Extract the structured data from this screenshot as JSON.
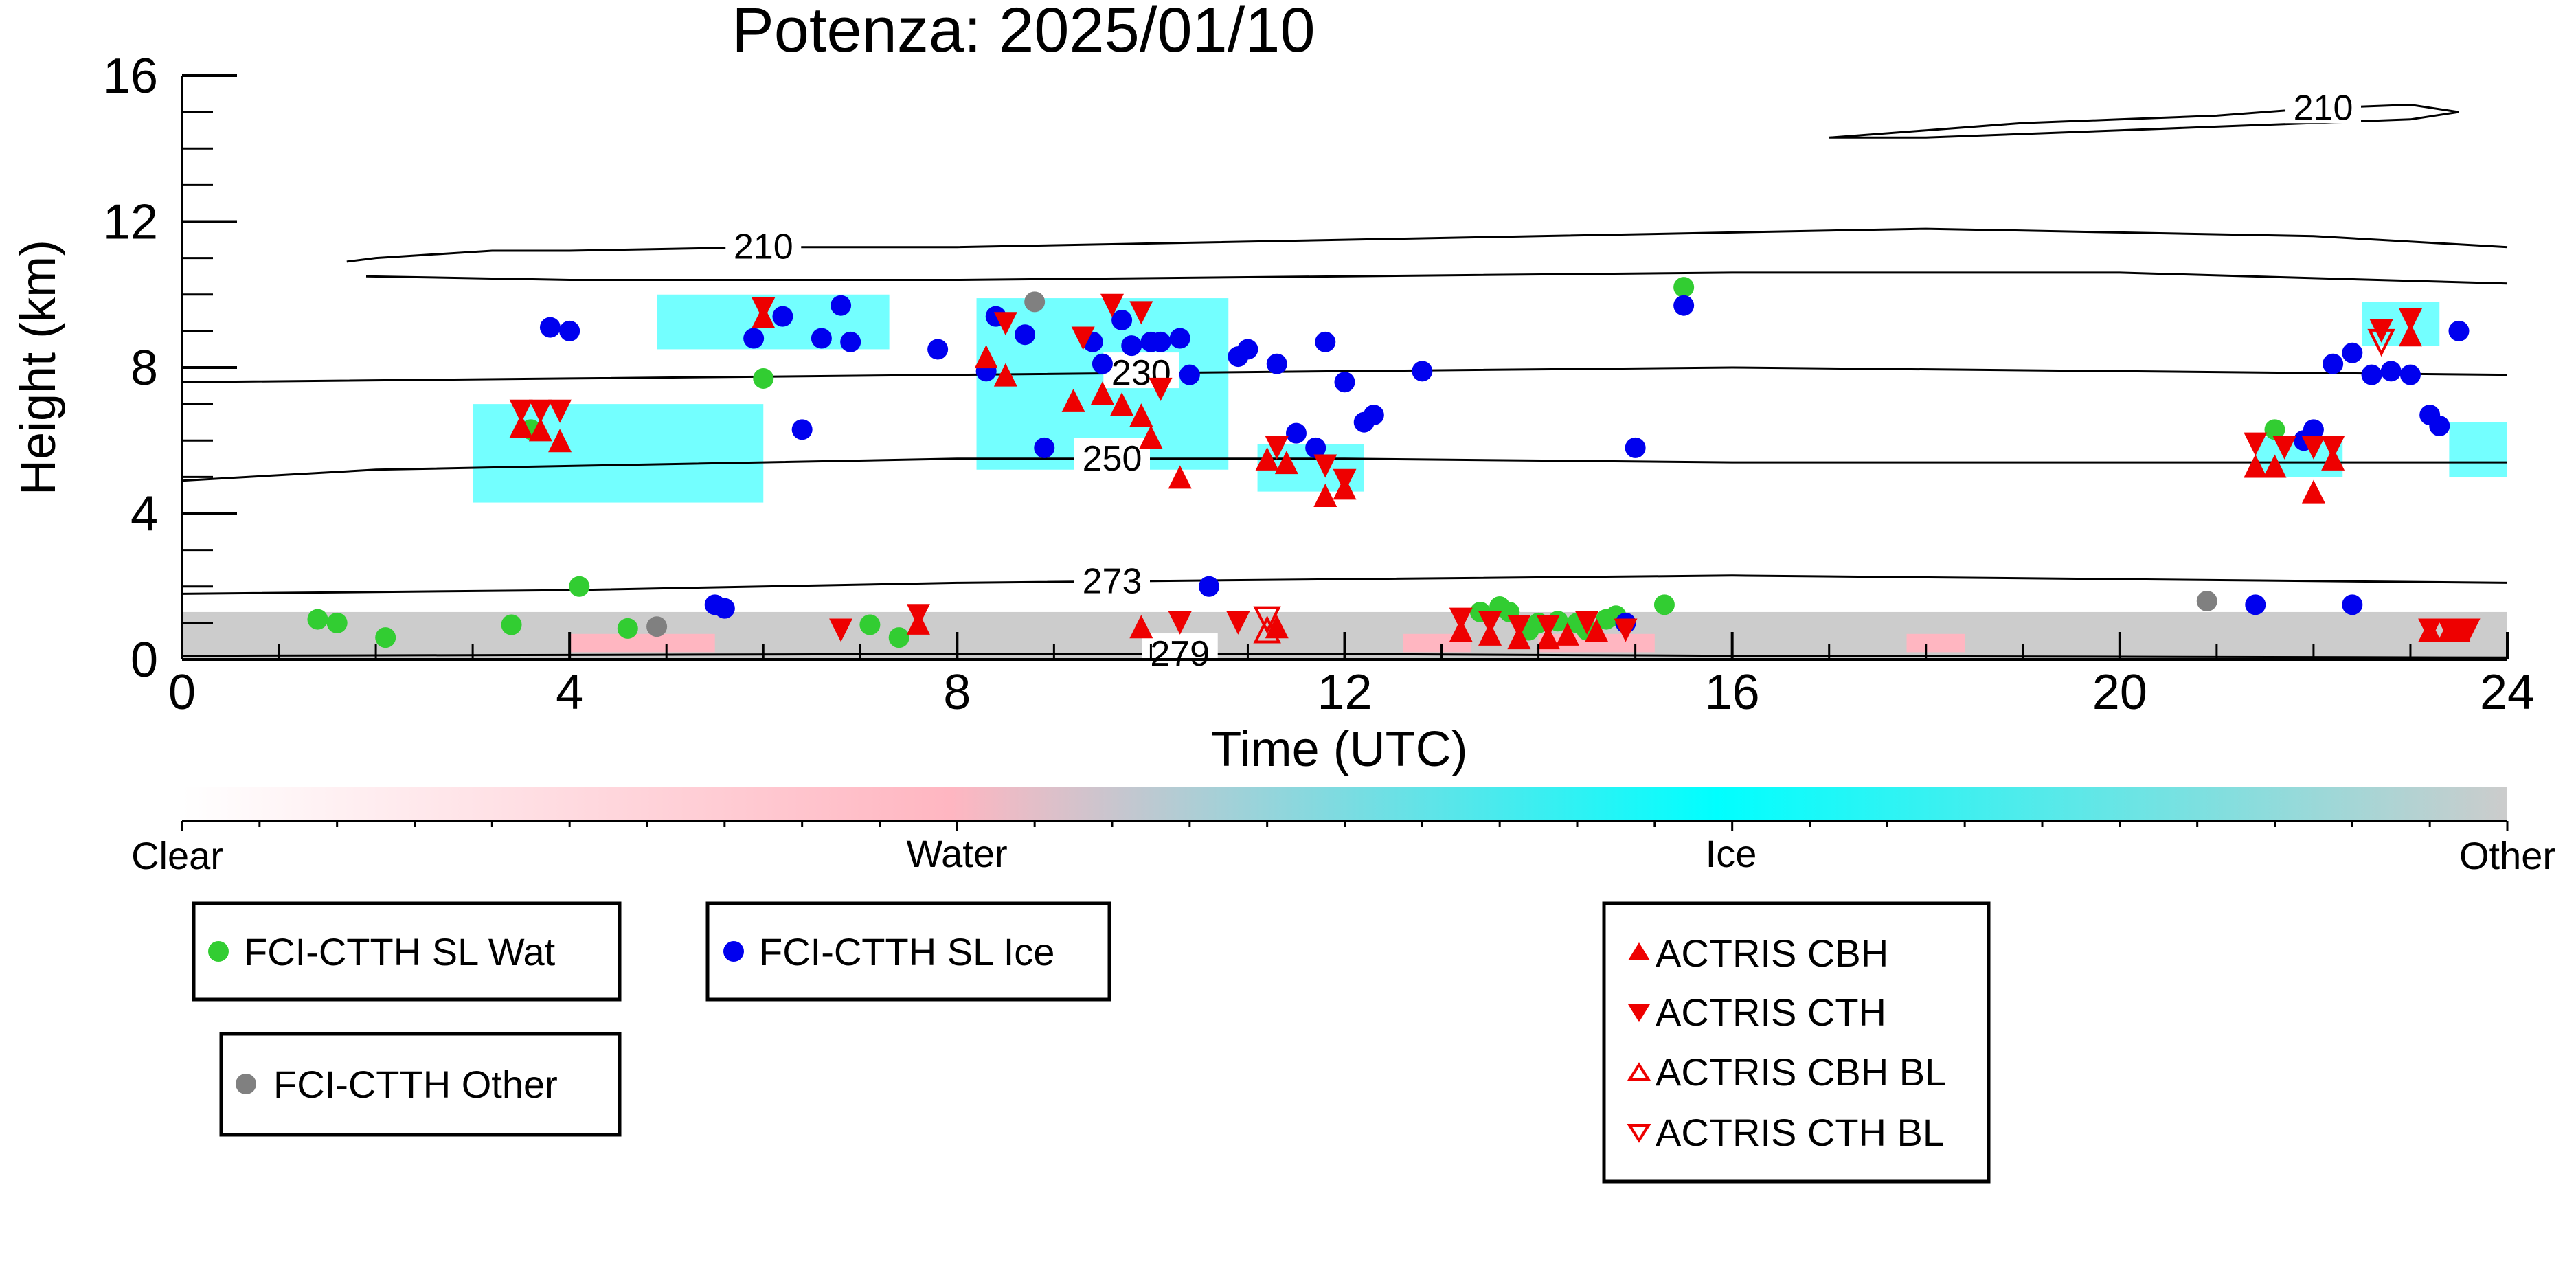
{
  "chart_data": {
    "type": "scatter",
    "title": "Potenza: 2025/01/10",
    "xlabel": "Time (UTC)",
    "ylabel": "Height (km)",
    "xlim": [
      0,
      24
    ],
    "ylim": [
      0,
      16
    ],
    "xticks": [
      0,
      4,
      8,
      12,
      16,
      20,
      24
    ],
    "yticks": [
      0,
      4,
      8,
      12,
      16
    ],
    "colorbar": {
      "labels": [
        "Clear",
        "Water",
        "Ice",
        "Other"
      ],
      "colors": [
        "#ffffff",
        "#ffb6c1",
        "#00ffff",
        "#cccccc"
      ]
    },
    "contours": [
      {
        "label": "210",
        "points": [
          [
            1.7,
            10.9
          ],
          [
            2.0,
            11.0
          ],
          [
            2.6,
            11.1
          ],
          [
            3.2,
            11.2
          ],
          [
            4,
            11.2
          ],
          [
            6,
            11.3
          ],
          [
            8,
            11.3
          ],
          [
            10,
            11.4
          ],
          [
            12,
            11.5
          ],
          [
            14,
            11.6
          ],
          [
            16,
            11.7
          ],
          [
            18,
            11.8
          ],
          [
            20,
            11.7
          ],
          [
            22,
            11.6
          ],
          [
            24,
            11.3
          ]
        ],
        "label_at": 6.0
      },
      {
        "label": "",
        "points": [
          [
            1.9,
            10.5
          ],
          [
            4,
            10.4
          ],
          [
            8,
            10.4
          ],
          [
            12,
            10.5
          ],
          [
            16,
            10.6
          ],
          [
            20,
            10.6
          ],
          [
            24,
            10.3
          ]
        ]
      },
      {
        "label": "210",
        "points": [
          [
            17,
            14.3
          ],
          [
            18,
            14.5
          ],
          [
            19,
            14.7
          ],
          [
            20,
            14.8
          ],
          [
            21,
            14.9
          ],
          [
            22,
            15.1
          ],
          [
            23,
            15.2
          ],
          [
            23.5,
            15.0
          ],
          [
            23,
            14.8
          ],
          [
            22,
            14.7
          ],
          [
            21,
            14.6
          ],
          [
            20,
            14.5
          ],
          [
            19,
            14.4
          ],
          [
            18,
            14.3
          ],
          [
            17,
            14.3
          ]
        ],
        "label_at": 22.1
      },
      {
        "label": "230",
        "points": [
          [
            0,
            7.6
          ],
          [
            4,
            7.7
          ],
          [
            8,
            7.8
          ],
          [
            12,
            7.9
          ],
          [
            16,
            8.0
          ],
          [
            20,
            7.9
          ],
          [
            24,
            7.8
          ]
        ],
        "label_at": 9.9
      },
      {
        "label": "250",
        "points": [
          [
            0,
            4.9
          ],
          [
            2,
            5.2
          ],
          [
            4,
            5.3
          ],
          [
            8,
            5.5
          ],
          [
            12,
            5.5
          ],
          [
            16,
            5.4
          ],
          [
            20,
            5.4
          ],
          [
            24,
            5.4
          ]
        ],
        "label_at": 9.6
      },
      {
        "label": "273",
        "points": [
          [
            0,
            1.8
          ],
          [
            4,
            1.9
          ],
          [
            8,
            2.1
          ],
          [
            12,
            2.2
          ],
          [
            16,
            2.3
          ],
          [
            20,
            2.2
          ],
          [
            24,
            2.1
          ]
        ],
        "label_at": 9.6
      },
      {
        "label": "279",
        "points": [
          [
            0,
            0.1
          ],
          [
            8,
            0.15
          ],
          [
            12,
            0.15
          ],
          [
            16,
            0.1
          ],
          [
            24,
            0.05
          ]
        ],
        "label_at": 10.3
      }
    ],
    "series": [
      {
        "name": "FCI-CTTH SL Wat",
        "marker": "circle",
        "color": "#32cd32",
        "points": [
          [
            1.4,
            1.1
          ],
          [
            1.6,
            1.0
          ],
          [
            2.1,
            0.6
          ],
          [
            3.4,
            0.95
          ],
          [
            3.6,
            6.3
          ],
          [
            4.1,
            2.0
          ],
          [
            4.6,
            0.85
          ],
          [
            6.0,
            7.7
          ],
          [
            7.1,
            0.95
          ],
          [
            7.4,
            0.6
          ],
          [
            13.4,
            1.3
          ],
          [
            13.6,
            1.45
          ],
          [
            13.7,
            1.3
          ],
          [
            13.9,
            0.8
          ],
          [
            14.0,
            1.0
          ],
          [
            14.2,
            1.05
          ],
          [
            14.4,
            1.0
          ],
          [
            14.5,
            0.8
          ],
          [
            14.7,
            1.1
          ],
          [
            14.8,
            1.2
          ],
          [
            15.3,
            1.5
          ],
          [
            15.5,
            10.2
          ],
          [
            21.6,
            6.3
          ]
        ]
      },
      {
        "name": "FCI-CTTH SL Ice",
        "marker": "circle",
        "color": "#0000ee",
        "points": [
          [
            3.8,
            9.1
          ],
          [
            4.0,
            9.0
          ],
          [
            5.5,
            1.5
          ],
          [
            5.6,
            1.4
          ],
          [
            5.9,
            8.8
          ],
          [
            6.2,
            9.4
          ],
          [
            6.4,
            6.3
          ],
          [
            6.6,
            8.8
          ],
          [
            6.8,
            9.7
          ],
          [
            6.9,
            8.7
          ],
          [
            7.8,
            8.5
          ],
          [
            8.3,
            7.9
          ],
          [
            8.4,
            9.4
          ],
          [
            8.7,
            8.9
          ],
          [
            8.9,
            5.8
          ],
          [
            9.4,
            8.7
          ],
          [
            9.5,
            8.1
          ],
          [
            9.7,
            9.3
          ],
          [
            9.8,
            8.6
          ],
          [
            10.0,
            8.7
          ],
          [
            10.1,
            8.7
          ],
          [
            10.3,
            8.8
          ],
          [
            10.4,
            7.8
          ],
          [
            10.6,
            2.0
          ],
          [
            10.9,
            8.3
          ],
          [
            11.0,
            8.5
          ],
          [
            11.3,
            8.1
          ],
          [
            11.5,
            6.2
          ],
          [
            11.7,
            5.8
          ],
          [
            11.8,
            8.7
          ],
          [
            12.0,
            7.6
          ],
          [
            12.2,
            6.5
          ],
          [
            12.3,
            6.7
          ],
          [
            12.8,
            7.9
          ],
          [
            14.9,
            1.0
          ],
          [
            15.0,
            5.8
          ],
          [
            15.5,
            9.7
          ],
          [
            21.4,
            1.5
          ],
          [
            21.9,
            6.0
          ],
          [
            22.0,
            6.3
          ],
          [
            22.2,
            8.1
          ],
          [
            22.4,
            8.4
          ],
          [
            22.6,
            7.8
          ],
          [
            22.8,
            7.9
          ],
          [
            23.0,
            7.8
          ],
          [
            23.2,
            6.7
          ],
          [
            23.3,
            6.4
          ],
          [
            23.5,
            9.0
          ],
          [
            22.4,
            1.5
          ]
        ]
      },
      {
        "name": "FCI-CTTH Other",
        "marker": "circle",
        "color": "#808080",
        "points": [
          [
            4.9,
            0.9
          ],
          [
            8.8,
            9.8
          ],
          [
            20.9,
            1.6
          ]
        ]
      },
      {
        "name": "ACTRIS CBH",
        "marker": "tri-up",
        "color": "#ee0000",
        "points": [
          [
            3.5,
            6.4
          ],
          [
            3.7,
            6.3
          ],
          [
            3.9,
            6.0
          ],
          [
            6.0,
            9.4
          ],
          [
            8.3,
            8.3
          ],
          [
            8.5,
            7.8
          ],
          [
            9.2,
            7.1
          ],
          [
            9.5,
            7.3
          ],
          [
            9.7,
            7.0
          ],
          [
            9.9,
            6.7
          ],
          [
            10.0,
            6.1
          ],
          [
            10.3,
            5.0
          ],
          [
            11.2,
            5.5
          ],
          [
            11.4,
            5.4
          ],
          [
            11.8,
            4.5
          ],
          [
            12.0,
            4.7
          ],
          [
            13.2,
            0.8
          ],
          [
            13.5,
            0.7
          ],
          [
            13.8,
            0.6
          ],
          [
            14.1,
            0.6
          ],
          [
            14.3,
            0.7
          ],
          [
            14.6,
            0.8
          ],
          [
            7.6,
            1.0
          ],
          [
            9.9,
            0.9
          ],
          [
            11.3,
            0.9
          ],
          [
            21.4,
            5.3
          ],
          [
            21.6,
            5.3
          ],
          [
            22.0,
            4.6
          ],
          [
            22.2,
            5.5
          ],
          [
            23.0,
            8.9
          ],
          [
            23.2,
            0.8
          ],
          [
            23.4,
            0.8
          ],
          [
            23.5,
            0.8
          ]
        ]
      },
      {
        "name": "ACTRIS CTH",
        "marker": "tri-down",
        "color": "#ee0000",
        "points": [
          [
            3.5,
            6.8
          ],
          [
            3.7,
            6.8
          ],
          [
            3.9,
            6.8
          ],
          [
            6.0,
            9.6
          ],
          [
            8.5,
            9.2
          ],
          [
            9.3,
            8.8
          ],
          [
            9.6,
            9.7
          ],
          [
            9.9,
            9.5
          ],
          [
            10.1,
            7.4
          ],
          [
            11.3,
            5.8
          ],
          [
            11.8,
            5.3
          ],
          [
            12.0,
            4.9
          ],
          [
            13.2,
            1.1
          ],
          [
            13.5,
            1.0
          ],
          [
            13.8,
            0.9
          ],
          [
            14.1,
            0.9
          ],
          [
            14.5,
            1.0
          ],
          [
            14.9,
            0.8
          ],
          [
            6.8,
            0.8
          ],
          [
            7.6,
            1.2
          ],
          [
            10.3,
            1.0
          ],
          [
            10.9,
            1.0
          ],
          [
            21.4,
            5.9
          ],
          [
            21.7,
            5.8
          ],
          [
            22.0,
            5.8
          ],
          [
            22.2,
            5.8
          ],
          [
            22.7,
            9.0
          ],
          [
            23.0,
            9.3
          ],
          [
            23.2,
            0.8
          ],
          [
            23.4,
            0.8
          ],
          [
            23.6,
            0.8
          ]
        ]
      },
      {
        "name": "ACTRIS CBH BL",
        "marker": "tri-up-open",
        "color": "#ee0000",
        "points": [
          [
            11.2,
            0.8
          ]
        ]
      },
      {
        "name": "ACTRIS CTH BL",
        "marker": "tri-down-open",
        "color": "#ee0000",
        "points": [
          [
            11.2,
            1.1
          ],
          [
            22.7,
            8.7
          ]
        ]
      }
    ]
  }
}
